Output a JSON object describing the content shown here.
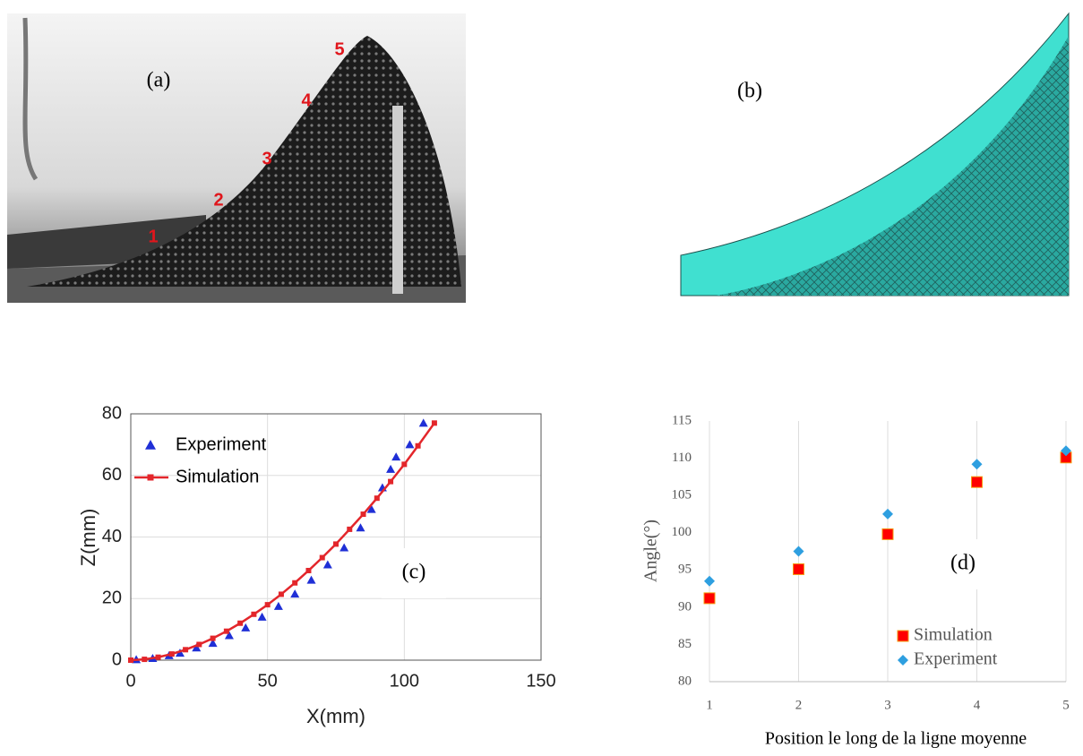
{
  "panels": {
    "a": {
      "label": "(a)",
      "markers": [
        "1",
        "2",
        "3",
        "4",
        "5"
      ]
    },
    "b": {
      "label": "(b)"
    }
  },
  "chart_data": [
    {
      "type": "line",
      "annotation": "(c)",
      "x_label": "X(mm)",
      "y_label": "Z(mm)",
      "xlim": [
        0,
        150
      ],
      "ylim": [
        0,
        80
      ],
      "xticks": [
        0,
        50,
        100,
        150
      ],
      "yticks": [
        0,
        20,
        40,
        60,
        80
      ],
      "grid": true,
      "legend": "northwest",
      "series": [
        {
          "name": "Experiment",
          "color": "#1f2fd6",
          "marker": "triangle",
          "line": false,
          "x": [
            2,
            8,
            14,
            18,
            24,
            30,
            36,
            42,
            48,
            54,
            60,
            66,
            72,
            78,
            84,
            88,
            92,
            95,
            97,
            102,
            107
          ],
          "values": [
            0.2,
            0.6,
            1.5,
            2.3,
            4,
            5.5,
            8,
            10.5,
            14,
            17.5,
            21.5,
            26,
            31,
            36.5,
            43,
            49,
            56,
            62,
            66,
            70,
            77
          ]
        },
        {
          "name": "Simulation",
          "color": "#e3262b",
          "marker": "square",
          "line": true,
          "x": [
            0,
            5,
            10,
            15,
            20,
            25,
            30,
            35,
            40,
            45,
            50,
            55,
            60,
            65,
            70,
            75,
            80,
            85,
            90,
            95,
            100,
            105,
            111
          ],
          "values": [
            0,
            0.27,
            0.96,
            2,
            3.4,
            5.1,
            7.1,
            9.4,
            12,
            14.9,
            18,
            21.4,
            25.1,
            29.1,
            33.3,
            37.7,
            42.5,
            47.4,
            52.6,
            58,
            63.6,
            69.6,
            77
          ]
        }
      ]
    },
    {
      "type": "scatter",
      "annotation": "(d)",
      "x_label": "Position le long de la ligne moyenne",
      "y_label": "Angle(°)",
      "xlim": [
        1,
        5
      ],
      "ylim": [
        80,
        115
      ],
      "xticks": [
        1,
        2,
        3,
        4,
        5
      ],
      "yticks": [
        80,
        85,
        90,
        95,
        100,
        105,
        110,
        115
      ],
      "grid": "x",
      "legend": "southeast",
      "series": [
        {
          "name": "Simulation",
          "color": "#ff0000",
          "marker": "square",
          "line": false,
          "x": [
            1,
            2,
            3,
            4,
            5
          ],
          "values": [
            91.2,
            95.1,
            99.8,
            106.8,
            110.1
          ]
        },
        {
          "name": "Experiment",
          "color": "#2e9fe0",
          "marker": "diamond",
          "line": false,
          "x": [
            1,
            2,
            3,
            4,
            5
          ],
          "values": [
            93.5,
            97.5,
            102.5,
            109.2,
            111
          ]
        }
      ]
    }
  ]
}
